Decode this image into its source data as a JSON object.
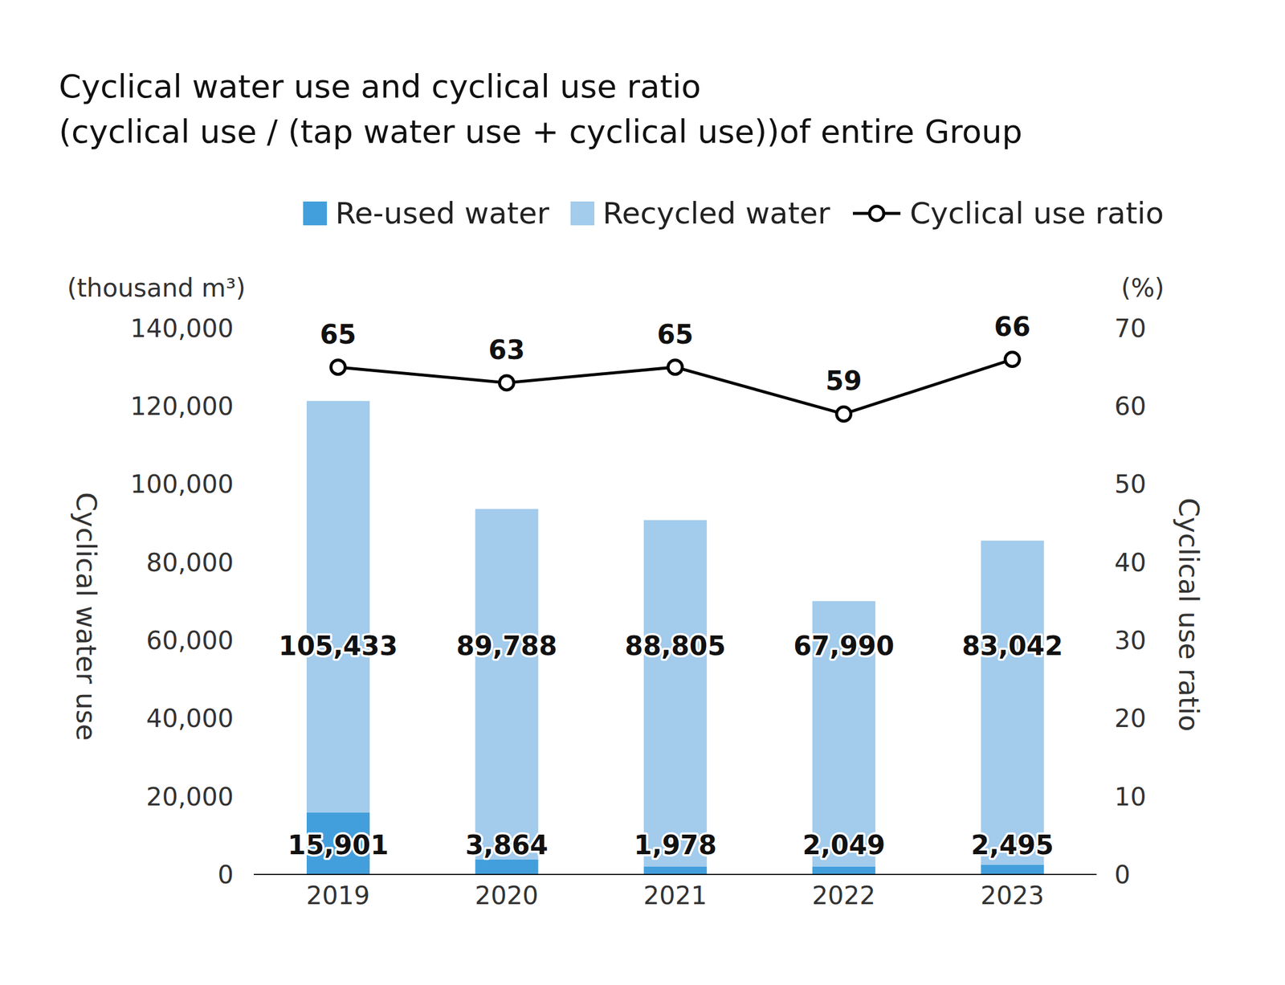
{
  "chart_data": {
    "type": "bar",
    "title": "Cyclical water use and cyclical use ratio\n(cyclical use / (tap water use + cyclical use))of entire Group",
    "y_label": "Cyclical water use",
    "y2_label": "Cyclical use ratio",
    "y_units": "(thousand m³)",
    "y2_units": "(%)",
    "categories": [
      "2019",
      "2020",
      "2021",
      "2022",
      "2023"
    ],
    "series": [
      {
        "name": "Re-used water",
        "type": "bar",
        "color": "#439fdc",
        "values": [
          15901,
          3864,
          1978,
          2049,
          2495
        ],
        "value_labels": [
          "15,901",
          "3,864",
          "1,978",
          "2,049",
          "2,495"
        ]
      },
      {
        "name": "Recycled water",
        "type": "bar",
        "color": "#a2cbec",
        "values": [
          105433,
          89788,
          88805,
          67990,
          83042
        ],
        "value_labels": [
          "105,433",
          "89,788",
          "88,805",
          "67,990",
          "83,042"
        ]
      },
      {
        "name": "Cyclical use ratio",
        "type": "line",
        "axis": "y2",
        "color": "#000000",
        "marker": "circle",
        "values": [
          65,
          63,
          65,
          59,
          66
        ]
      }
    ],
    "stacked": true,
    "data_labels": true,
    "legend": "top",
    "grid": false,
    "ylim": [
      0,
      140000
    ],
    "yticks": [
      0,
      {
        "value": 20000,
        "label": "20,000"
      },
      {
        "value": 40000,
        "label": "40,000"
      },
      {
        "value": 60000,
        "label": "60,000"
      },
      {
        "value": 80000,
        "label": "80,000"
      },
      {
        "value": 100000,
        "label": "100,000"
      },
      {
        "value": 120000,
        "label": "120,000"
      },
      {
        "value": 140000,
        "label": "140,000"
      }
    ],
    "y2lim": [
      0,
      70
    ],
    "y2ticks": [
      0,
      10,
      20,
      30,
      40,
      50,
      60,
      70
    ]
  }
}
